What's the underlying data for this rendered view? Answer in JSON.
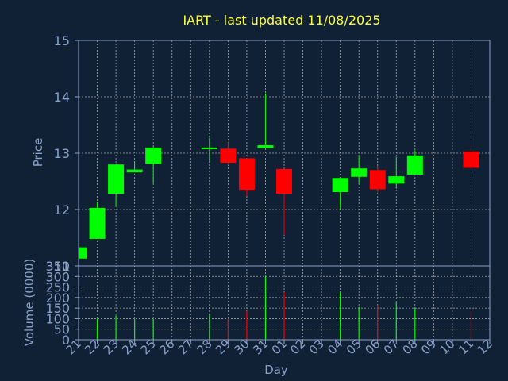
{
  "colors": {
    "background": "#102035",
    "title": "#ffff33",
    "axis_text": "#8aa0c8",
    "axis_line": "#8aa0c8",
    "grid": "#c8c8c8",
    "up": "#00ff00",
    "down": "#ff0000"
  },
  "chart_data": [
    {
      "type": "candlestick",
      "title": "IART - last updated 11/08/2025",
      "ylabel": "Price",
      "ylim": [
        11,
        15
      ],
      "yticks": [
        "11",
        "12",
        "13",
        "14",
        "15"
      ],
      "grid": true,
      "x": [
        "21",
        "22",
        "23",
        "24",
        "25",
        "26",
        "27",
        "28",
        "29",
        "30",
        "31",
        "01",
        "02",
        "03",
        "04",
        "05",
        "06",
        "07",
        "08",
        "09",
        "10",
        "11",
        "12"
      ],
      "candles": [
        {
          "x": "21",
          "open": 11.13,
          "close": 11.33,
          "high": 11.33,
          "low": 11.13
        },
        {
          "x": "22",
          "open": 11.48,
          "close": 12.03,
          "high": 12.13,
          "low": 11.48
        },
        {
          "x": "23",
          "open": 12.28,
          "close": 12.8,
          "high": 12.82,
          "low": 12.05
        },
        {
          "x": "24",
          "open": 12.66,
          "close": 12.71,
          "high": 12.86,
          "low": 12.66
        },
        {
          "x": "25",
          "open": 12.81,
          "close": 13.1,
          "high": 13.12,
          "low": 12.46
        },
        {
          "x": "28",
          "open": 13.07,
          "close": 13.1,
          "high": 13.27,
          "low": 12.83
        },
        {
          "x": "29",
          "open": 13.08,
          "close": 12.83,
          "high": 13.21,
          "low": 12.79
        },
        {
          "x": "30",
          "open": 12.91,
          "close": 12.35,
          "high": 12.91,
          "low": 12.24
        },
        {
          "x": "31",
          "open": 13.09,
          "close": 13.14,
          "high": 14.06,
          "low": 13.09
        },
        {
          "x": "01",
          "open": 12.72,
          "close": 12.28,
          "high": 12.72,
          "low": 11.55
        },
        {
          "x": "04",
          "open": 12.31,
          "close": 12.56,
          "high": 12.56,
          "low": 12.01
        },
        {
          "x": "05",
          "open": 12.58,
          "close": 12.73,
          "high": 12.96,
          "low": 12.45
        },
        {
          "x": "06",
          "open": 12.7,
          "close": 12.36,
          "high": 12.78,
          "low": 12.3
        },
        {
          "x": "07",
          "open": 12.46,
          "close": 12.59,
          "high": 12.94,
          "low": 12.37
        },
        {
          "x": "08",
          "open": 12.62,
          "close": 12.96,
          "high": 13.05,
          "low": 12.62
        },
        {
          "x": "11",
          "open": 13.03,
          "close": 12.74,
          "high": 13.26,
          "low": 12.66
        }
      ]
    },
    {
      "type": "bar",
      "ylabel": "Volume (0000)",
      "xlabel": "Day",
      "ylim": [
        0,
        350
      ],
      "yticks": [
        "0",
        "50",
        "100",
        "150",
        "200",
        "250",
        "300",
        "350"
      ],
      "grid": true,
      "categories": [
        "22",
        "23",
        "24",
        "25",
        "28",
        "29",
        "30",
        "31",
        "01",
        "04",
        "05",
        "06",
        "07",
        "08",
        "11"
      ],
      "values": [
        100,
        115,
        100,
        100,
        125,
        100,
        135,
        300,
        225,
        225,
        155,
        165,
        180,
        150,
        140
      ],
      "colors_by_day": [
        "up",
        "up",
        "up",
        "up",
        "up",
        "down",
        "down",
        "up",
        "down",
        "up",
        "up",
        "down",
        "up",
        "up",
        "down"
      ]
    }
  ]
}
